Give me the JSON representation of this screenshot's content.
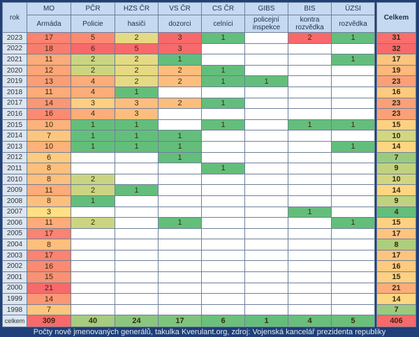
{
  "table": {
    "corner_label": "rok",
    "columns": [
      {
        "code": "MO",
        "label": "Armáda"
      },
      {
        "code": "PČR",
        "label": "Policie"
      },
      {
        "code": "HZS ČR",
        "label": "hasiči"
      },
      {
        "code": "VS ČR",
        "label": "dozorci"
      },
      {
        "code": "CS ČR",
        "label": "celníci"
      },
      {
        "code": "GIBS",
        "label": "policejní inspekce"
      },
      {
        "code": "BIS",
        "label": "kontra rozvědka"
      },
      {
        "code": "ÚZSI",
        "label": "rozvědka"
      }
    ],
    "total_label": "Celkem",
    "rows": [
      {
        "year": "2023",
        "values": [
          17,
          5,
          2,
          3,
          1,
          null,
          2,
          1
        ],
        "total": 31
      },
      {
        "year": "2022",
        "values": [
          18,
          6,
          5,
          3,
          null,
          null,
          null,
          null
        ],
        "total": 32
      },
      {
        "year": "2021",
        "values": [
          11,
          2,
          2,
          1,
          null,
          null,
          null,
          1
        ],
        "total": 17
      },
      {
        "year": "2020",
        "values": [
          12,
          2,
          2,
          2,
          1,
          null,
          null,
          null
        ],
        "total": 19
      },
      {
        "year": "2019",
        "values": [
          13,
          4,
          2,
          2,
          1,
          1,
          null,
          null
        ],
        "total": 23
      },
      {
        "year": "2018",
        "values": [
          11,
          4,
          1,
          null,
          null,
          null,
          null,
          null
        ],
        "total": 16
      },
      {
        "year": "2017",
        "values": [
          14,
          3,
          3,
          2,
          1,
          null,
          null,
          null
        ],
        "total": 23
      },
      {
        "year": "2016",
        "values": [
          16,
          4,
          3,
          null,
          null,
          null,
          null,
          null
        ],
        "total": 23
      },
      {
        "year": "2015",
        "values": [
          10,
          1,
          1,
          null,
          1,
          null,
          1,
          1
        ],
        "total": 15
      },
      {
        "year": "2014",
        "values": [
          7,
          1,
          1,
          1,
          null,
          null,
          null,
          null
        ],
        "total": 10
      },
      {
        "year": "2013",
        "values": [
          10,
          1,
          1,
          1,
          null,
          null,
          null,
          1
        ],
        "total": 14
      },
      {
        "year": "2012",
        "values": [
          6,
          null,
          null,
          1,
          null,
          null,
          null,
          null
        ],
        "total": 7
      },
      {
        "year": "2011",
        "values": [
          8,
          null,
          null,
          null,
          1,
          null,
          null,
          null
        ],
        "total": 9
      },
      {
        "year": "2010",
        "values": [
          8,
          2,
          null,
          null,
          null,
          null,
          null,
          null
        ],
        "total": 10
      },
      {
        "year": "2009",
        "values": [
          11,
          2,
          1,
          null,
          null,
          null,
          null,
          null
        ],
        "total": 14
      },
      {
        "year": "2008",
        "values": [
          8,
          1,
          null,
          null,
          null,
          null,
          null,
          null
        ],
        "total": 9
      },
      {
        "year": "2007",
        "values": [
          3,
          null,
          null,
          null,
          null,
          null,
          1,
          null
        ],
        "total": 4
      },
      {
        "year": "2006",
        "values": [
          11,
          2,
          null,
          1,
          null,
          null,
          null,
          1
        ],
        "total": 15
      },
      {
        "year": "2005",
        "values": [
          17,
          null,
          null,
          null,
          null,
          null,
          null,
          null
        ],
        "total": 17
      },
      {
        "year": "2004",
        "values": [
          8,
          null,
          null,
          null,
          null,
          null,
          null,
          null
        ],
        "total": 8
      },
      {
        "year": "2003",
        "values": [
          17,
          null,
          null,
          null,
          null,
          null,
          null,
          null
        ],
        "total": 17
      },
      {
        "year": "2002",
        "values": [
          16,
          null,
          null,
          null,
          null,
          null,
          null,
          null
        ],
        "total": 16
      },
      {
        "year": "2001",
        "values": [
          15,
          null,
          null,
          null,
          null,
          null,
          null,
          null
        ],
        "total": 15
      },
      {
        "year": "2000",
        "values": [
          21,
          null,
          null,
          null,
          null,
          null,
          null,
          null
        ],
        "total": 21
      },
      {
        "year": "1999",
        "values": [
          14,
          null,
          null,
          null,
          null,
          null,
          null,
          null
        ],
        "total": 14
      },
      {
        "year": "1998",
        "values": [
          7,
          null,
          null,
          null,
          null,
          null,
          null,
          null
        ],
        "total": 7
      }
    ],
    "sum_label": "celkem",
    "sums": [
      309,
      40,
      24,
      17,
      6,
      1,
      4,
      5
    ],
    "grand_total": 406
  },
  "colors": {
    "green": "#63be7b",
    "yellow": "#ffe084",
    "red": "#f8696b",
    "frame": "#1e3f78",
    "header": "#c5d9f1"
  },
  "caption": "Počty nově jmenovaných generálů, takulka Kverulant.org, zdroj: Vojenská kancelář prezidenta republiky"
}
